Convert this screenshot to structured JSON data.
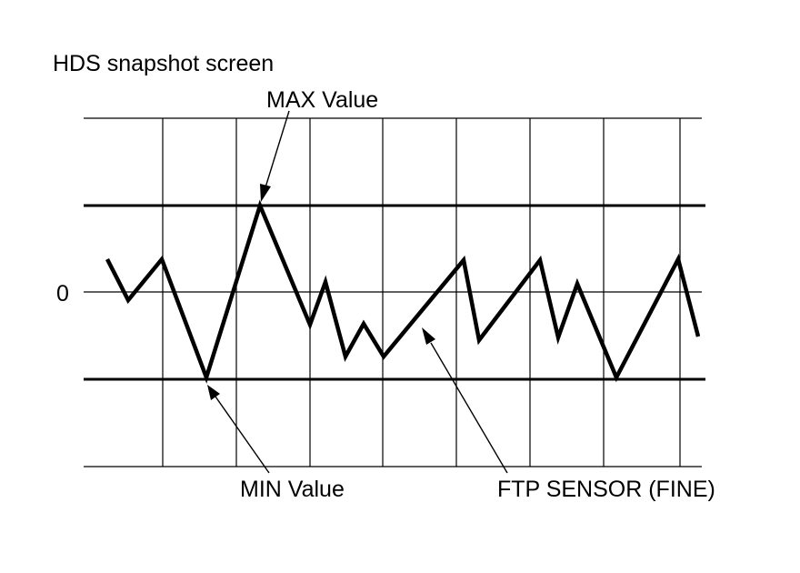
{
  "title": "HDS snapshot screen",
  "zero_label": "0",
  "annotations": {
    "max_value": "MAX Value",
    "min_value": "MIN Value",
    "signal": "FTP SENSOR (FINE)"
  },
  "colors": {
    "line": "#000000",
    "background": "#ffffff"
  }
}
